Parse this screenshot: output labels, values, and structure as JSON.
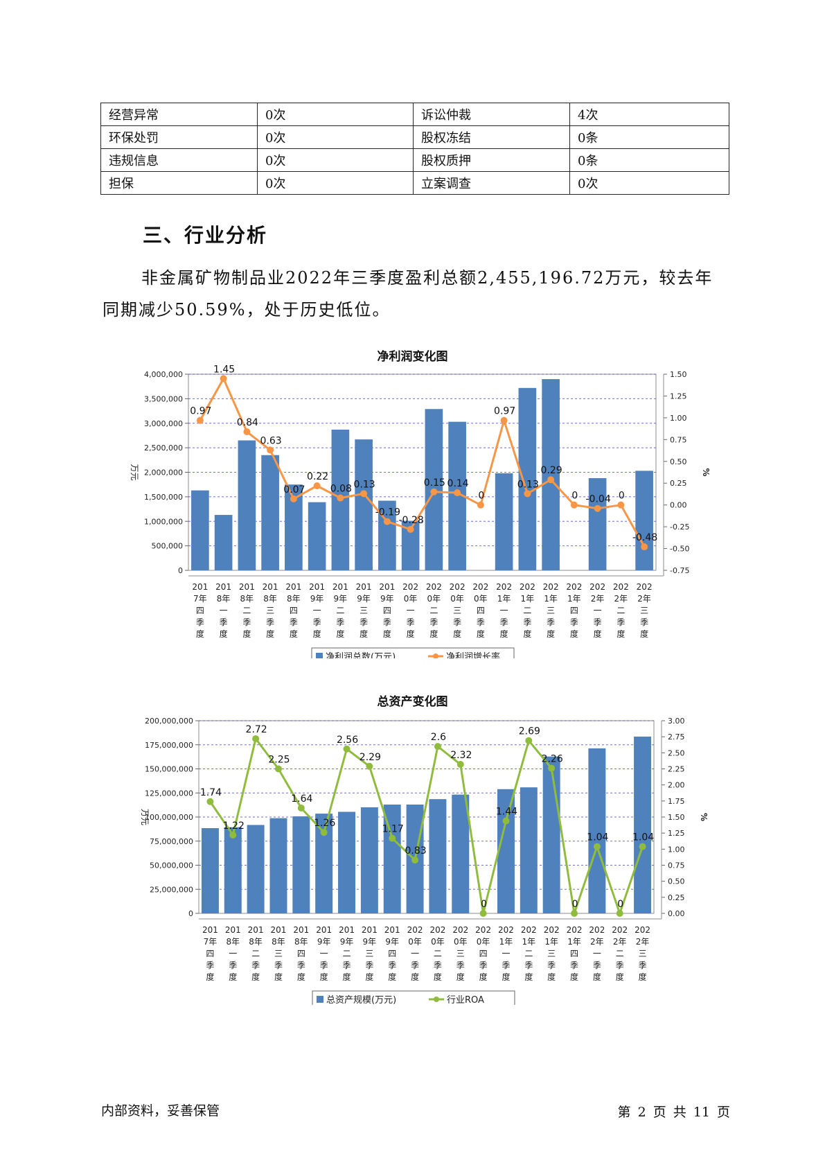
{
  "risk_table": [
    [
      "经营异常",
      "0次",
      "诉讼仲裁",
      "4次"
    ],
    [
      "环保处罚",
      "0次",
      "股权冻结",
      "0条"
    ],
    [
      "违规信息",
      "0次",
      "股权质押",
      "0条"
    ],
    [
      "担保",
      "0次",
      "立案调查",
      "0次"
    ]
  ],
  "section": {
    "heading": "三、行业分析",
    "paragraph": "非金属矿物制品业2022年三季度盈利总额2,455,196.72万元，较去年同期减少50.59%，处于历史低位。"
  },
  "colors": {
    "bar": "#4f81bd",
    "line1": "#f79646",
    "line2": "#8fbc3c",
    "grid": "#3333cc"
  },
  "chart_data": [
    {
      "type": "bar",
      "title": "净利润变化图",
      "categories": [
        "2017年四季度",
        "2018年一季度",
        "2018年二季度",
        "2018年三季度",
        "2018年四季度",
        "2019年一季度",
        "2019年二季度",
        "2019年三季度",
        "2019年四季度",
        "2020年一季度",
        "2020年二季度",
        "2020年三季度",
        "2020年四季度",
        "2021年一季度",
        "2021年二季度",
        "2021年三季度",
        "2021年四季度",
        "2022年一季度",
        "2022年二季度",
        "2022年三季度"
      ],
      "category_lines": [
        [
          "201",
          "7年",
          "四",
          "季",
          "度"
        ],
        [
          "201",
          "8年",
          "一",
          "季",
          "度"
        ],
        [
          "201",
          "8年",
          "二",
          "季",
          "度"
        ],
        [
          "201",
          "8年",
          "三",
          "季",
          "度"
        ],
        [
          "201",
          "8年",
          "四",
          "季",
          "度"
        ],
        [
          "201",
          "9年",
          "一",
          "季",
          "度"
        ],
        [
          "201",
          "9年",
          "二",
          "季",
          "度"
        ],
        [
          "201",
          "9年",
          "三",
          "季",
          "度"
        ],
        [
          "201",
          "9年",
          "四",
          "季",
          "度"
        ],
        [
          "202",
          "0年",
          "一",
          "季",
          "度"
        ],
        [
          "202",
          "0年",
          "二",
          "季",
          "度"
        ],
        [
          "202",
          "0年",
          "三",
          "季",
          "度"
        ],
        [
          "202",
          "0年",
          "四",
          "季",
          "度"
        ],
        [
          "202",
          "1年",
          "一",
          "季",
          "度"
        ],
        [
          "202",
          "1年",
          "二",
          "季",
          "度"
        ],
        [
          "202",
          "1年",
          "三",
          "季",
          "度"
        ],
        [
          "202",
          "1年",
          "四",
          "季",
          "度"
        ],
        [
          "202",
          "2年",
          "一",
          "季",
          "度"
        ],
        [
          "202",
          "2年",
          "二",
          "季",
          "度"
        ],
        [
          "202",
          "2年",
          "三",
          "季",
          "度"
        ]
      ],
      "series": [
        {
          "name": "净利润总数(万元)",
          "kind": "bar",
          "axis": "left",
          "values": [
            1630000,
            1130000,
            2650000,
            2350000,
            1750000,
            1390000,
            2870000,
            2670000,
            1420000,
            1010000,
            3290000,
            3030000,
            0,
            1980000,
            3720000,
            3900000,
            0,
            1880000,
            0,
            2030000
          ]
        },
        {
          "name": "净利润增长率",
          "kind": "line",
          "axis": "right",
          "values": [
            0.97,
            1.45,
            0.84,
            0.63,
            0.07,
            0.22,
            0.08,
            0.13,
            -0.19,
            -0.28,
            0.15,
            0.14,
            0,
            0.97,
            0.13,
            0.29,
            0,
            -0.04,
            0,
            -0.48
          ],
          "labels": [
            "0.97",
            "1.45",
            "0.84",
            "0.63",
            "0.07",
            "0.22",
            "0.08",
            "0.13",
            "-0.19",
            "-0.28",
            "0.15",
            "0.14",
            "0",
            "0.97",
            "0.13",
            "0.29",
            "0",
            "-0.04",
            "0",
            "-0.48"
          ]
        }
      ],
      "ylabel": "万元",
      "y2label": "%",
      "ylim": [
        0,
        4000000
      ],
      "y2lim": [
        -0.75,
        1.5
      ],
      "yticks": [
        "0",
        "500,000",
        "1,000,000",
        "1,500,000",
        "2,000,000",
        "2,500,000",
        "3,000,000",
        "3,500,000",
        "4,000,000"
      ],
      "y2ticks": [
        "-0.75",
        "-0.50",
        "-0.25",
        "0.00",
        "0.25",
        "0.50",
        "0.75",
        "1.00",
        "1.25",
        "1.50"
      ],
      "grid": true,
      "legend": "bottom"
    },
    {
      "type": "bar",
      "title": "总资产变化图",
      "categories": [
        "2017年四季度",
        "2018年一季度",
        "2018年二季度",
        "2018年三季度",
        "2018年四季度",
        "2019年一季度",
        "2019年二季度",
        "2019年三季度",
        "2019年四季度",
        "2020年一季度",
        "2020年二季度",
        "2020年三季度",
        "2020年四季度",
        "2021年一季度",
        "2021年二季度",
        "2021年三季度",
        "2021年四季度",
        "2022年一季度",
        "2022年二季度",
        "2022年三季度"
      ],
      "category_lines": [
        [
          "201",
          "7年",
          "四",
          "季",
          "度"
        ],
        [
          "201",
          "8年",
          "一",
          "季",
          "度"
        ],
        [
          "201",
          "8年",
          "二",
          "季",
          "度"
        ],
        [
          "201",
          "8年",
          "三",
          "季",
          "度"
        ],
        [
          "201",
          "8年",
          "四",
          "季",
          "度"
        ],
        [
          "201",
          "9年",
          "一",
          "季",
          "度"
        ],
        [
          "201",
          "9年",
          "二",
          "季",
          "度"
        ],
        [
          "201",
          "9年",
          "三",
          "季",
          "度"
        ],
        [
          "201",
          "9年",
          "四",
          "季",
          "度"
        ],
        [
          "202",
          "0年",
          "一",
          "季",
          "度"
        ],
        [
          "202",
          "0年",
          "二",
          "季",
          "度"
        ],
        [
          "202",
          "0年",
          "三",
          "季",
          "度"
        ],
        [
          "202",
          "0年",
          "四",
          "季",
          "度"
        ],
        [
          "202",
          "1年",
          "一",
          "季",
          "度"
        ],
        [
          "202",
          "1年",
          "二",
          "季",
          "度"
        ],
        [
          "202",
          "1年",
          "三",
          "季",
          "度"
        ],
        [
          "202",
          "1年",
          "四",
          "季",
          "度"
        ],
        [
          "202",
          "2年",
          "一",
          "季",
          "度"
        ],
        [
          "202",
          "2年",
          "二",
          "季",
          "度"
        ],
        [
          "202",
          "2年",
          "三",
          "季",
          "度"
        ]
      ],
      "series": [
        {
          "name": "总资产规模(万元)",
          "kind": "bar",
          "axis": "left",
          "values": [
            94000000,
            95000000,
            97500000,
            105000000,
            107000000,
            110000000,
            112000000,
            117000000,
            120000000,
            120000000,
            126000000,
            131000000,
            0,
            137000000,
            139000000,
            173000000,
            0,
            182000000,
            0,
            195000000
          ]
        },
        {
          "name": "行业ROA",
          "kind": "line",
          "axis": "right",
          "values": [
            1.74,
            1.22,
            2.72,
            2.25,
            1.64,
            1.26,
            2.56,
            2.29,
            1.17,
            0.83,
            2.6,
            2.32,
            0,
            1.44,
            2.69,
            2.26,
            0,
            1.04,
            0,
            1.04
          ],
          "labels": [
            "1.74",
            "1.22",
            "2.72",
            "2.25",
            "1.64",
            "1.26",
            "2.56",
            "2.29",
            "1.17",
            "0.83",
            "2.6",
            "2.32",
            "0",
            "1.44",
            "2.69",
            "2.26",
            "0",
            "1.04",
            "0",
            "1.04"
          ]
        }
      ],
      "ylabel": "万元",
      "y2label": "%",
      "ylim": [
        0,
        212500000
      ],
      "y2lim": [
        0,
        3
      ],
      "yticks": [
        "0",
        "25,000,000",
        "50,000,000",
        "75,000,000",
        "100,000,000",
        "125,000,000",
        "150,000,000",
        "175,000,000",
        "200,000,000"
      ],
      "y2ticks": [
        "0.00",
        "0.25",
        "0.50",
        "0.75",
        "1.00",
        "1.25",
        "1.50",
        "1.75",
        "2.00",
        "2.25",
        "2.50",
        "2.75",
        "3.00"
      ],
      "grid": true,
      "legend": "bottom"
    }
  ],
  "footer": {
    "left": "内部资料，妥善保管",
    "right": "第 2 页  共 11 页"
  }
}
